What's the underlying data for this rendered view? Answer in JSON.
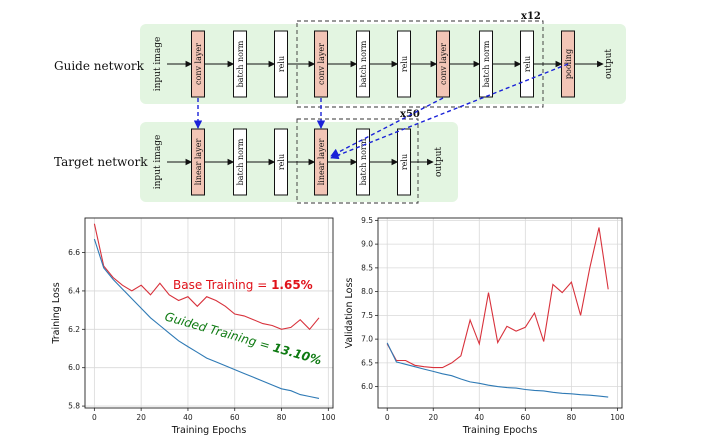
{
  "diagram": {
    "guide_label": "Guide network",
    "target_label": "Target network",
    "guide_input": "input image",
    "target_input": "input image",
    "guide_output": "output",
    "target_output": "output",
    "guide_repeat": "x12",
    "target_repeat": "x50",
    "guide_blocks": [
      {
        "label": "conv layer",
        "kind": "layer"
      },
      {
        "label": "batch norm",
        "kind": "norm"
      },
      {
        "label": "relu",
        "kind": "norm"
      },
      {
        "label": "conv layer",
        "kind": "layer"
      },
      {
        "label": "batch norm",
        "kind": "norm"
      },
      {
        "label": "relu",
        "kind": "norm"
      },
      {
        "label": "conv layer",
        "kind": "layer"
      },
      {
        "label": "batch norm",
        "kind": "norm"
      },
      {
        "label": "relu",
        "kind": "norm"
      },
      {
        "label": "pooling",
        "kind": "layer"
      }
    ],
    "target_blocks": [
      {
        "label": "linear layer",
        "kind": "layer"
      },
      {
        "label": "batch norm",
        "kind": "norm"
      },
      {
        "label": "relu",
        "kind": "norm"
      },
      {
        "label": "linear layer",
        "kind": "layer"
      },
      {
        "label": "batch norm",
        "kind": "norm"
      },
      {
        "label": "relu",
        "kind": "norm"
      }
    ],
    "colors": {
      "panel": "#e3f5e1",
      "layer_fill": "#f2c5b6",
      "block_stroke": "#111111",
      "guide_arrow": "#1a22d8"
    }
  },
  "chart_data": [
    {
      "type": "line",
      "xlabel": "Training Epochs",
      "ylabel": "Training Loss",
      "xlim": [
        -4,
        102
      ],
      "ylim": [
        5.79,
        6.78
      ],
      "xticks": [
        0,
        20,
        40,
        60,
        80,
        100
      ],
      "yticks": [
        5.8,
        6.0,
        6.2,
        6.4,
        6.6
      ],
      "annotations": [
        {
          "text": "Base Training = ",
          "value": "1.65%",
          "color": "#e0121a"
        },
        {
          "text": "Guided Training = ",
          "value": "13.10%",
          "color": "#0e7a12"
        }
      ],
      "series": [
        {
          "color": "#d8323c",
          "x": [
            0,
            4,
            8,
            12,
            16,
            20,
            24,
            28,
            32,
            36,
            40,
            44,
            48,
            52,
            56,
            60,
            64,
            68,
            72,
            76,
            80,
            84,
            88,
            92,
            96
          ],
          "y": [
            6.75,
            6.53,
            6.47,
            6.43,
            6.4,
            6.43,
            6.38,
            6.44,
            6.38,
            6.35,
            6.37,
            6.32,
            6.37,
            6.35,
            6.32,
            6.28,
            6.27,
            6.25,
            6.23,
            6.22,
            6.2,
            6.21,
            6.25,
            6.2,
            6.26
          ]
        },
        {
          "color": "#2f7ab5",
          "x": [
            0,
            4,
            8,
            12,
            16,
            20,
            24,
            28,
            32,
            36,
            40,
            44,
            48,
            52,
            56,
            60,
            64,
            68,
            72,
            76,
            80,
            84,
            88,
            92,
            96
          ],
          "y": [
            6.67,
            6.52,
            6.46,
            6.41,
            6.36,
            6.31,
            6.26,
            6.22,
            6.18,
            6.14,
            6.11,
            6.08,
            6.05,
            6.03,
            6.01,
            5.99,
            5.97,
            5.95,
            5.93,
            5.91,
            5.89,
            5.88,
            5.86,
            5.85,
            5.84
          ]
        }
      ]
    },
    {
      "type": "line",
      "xlabel": "Training Epochs",
      "ylabel": "Validation Loss",
      "xlim": [
        -4,
        102
      ],
      "ylim": [
        5.55,
        9.55
      ],
      "xticks": [
        0,
        20,
        40,
        60,
        80,
        100
      ],
      "yticks": [
        6.0,
        6.5,
        7.0,
        7.5,
        8.0,
        8.5,
        9.0,
        9.5
      ],
      "series": [
        {
          "color": "#d8323c",
          "x": [
            0,
            4,
            8,
            12,
            16,
            20,
            24,
            28,
            32,
            36,
            40,
            44,
            48,
            52,
            56,
            60,
            64,
            68,
            72,
            76,
            80,
            84,
            88,
            92,
            96
          ],
          "y": [
            6.9,
            6.55,
            6.55,
            6.45,
            6.42,
            6.4,
            6.4,
            6.5,
            6.65,
            7.4,
            6.9,
            7.98,
            6.93,
            7.27,
            7.17,
            7.25,
            7.55,
            6.95,
            8.15,
            7.98,
            8.2,
            7.5,
            8.5,
            9.35,
            8.05
          ]
        },
        {
          "color": "#2f7ab5",
          "x": [
            0,
            4,
            8,
            12,
            16,
            20,
            24,
            28,
            32,
            36,
            40,
            44,
            48,
            52,
            56,
            60,
            64,
            68,
            72,
            76,
            80,
            84,
            88,
            92,
            96
          ],
          "y": [
            6.92,
            6.52,
            6.47,
            6.42,
            6.37,
            6.32,
            6.27,
            6.23,
            6.16,
            6.1,
            6.07,
            6.03,
            6.0,
            5.98,
            5.97,
            5.94,
            5.92,
            5.91,
            5.88,
            5.86,
            5.85,
            5.83,
            5.82,
            5.8,
            5.78
          ]
        }
      ]
    }
  ]
}
